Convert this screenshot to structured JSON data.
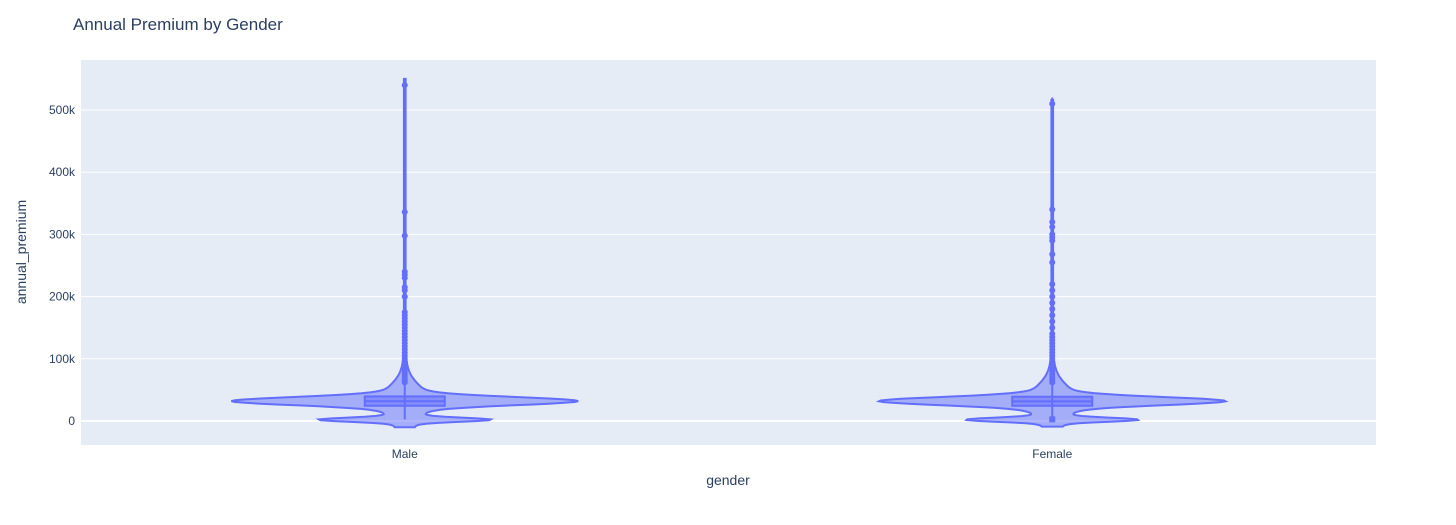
{
  "chart_data": {
    "type": "violin",
    "title": "Annual Premium by Gender",
    "xlabel": "gender",
    "ylabel": "annual_premium",
    "ylim": [
      -40000,
      580000
    ],
    "yticks": [
      0,
      100000,
      200000,
      300000,
      400000,
      500000
    ],
    "ytick_labels": [
      "0",
      "100k",
      "200k",
      "300k",
      "400k",
      "500k"
    ],
    "grid": true,
    "colors": {
      "plot_bg": "#e5ecf6",
      "grid": "#ffffff",
      "line": "#636efa",
      "fill": "#636efa",
      "text": "#2a3f5f"
    },
    "categories": [
      "Male",
      "Female"
    ],
    "series": [
      {
        "category": "Male",
        "box": {
          "min": 2630,
          "q1": 24500,
          "median": 31700,
          "q3": 39500,
          "upper_fence": 61500
        },
        "kde_range": [
          -10000,
          550000
        ],
        "outliers": [
          62000,
          65000,
          68000,
          72000,
          76000,
          80000,
          85000,
          90000,
          95000,
          100000,
          105000,
          110000,
          115000,
          120000,
          125000,
          130000,
          135000,
          140000,
          145000,
          150000,
          155000,
          160000,
          165000,
          170000,
          175000,
          200000,
          210000,
          215000,
          230000,
          235000,
          240000,
          298000,
          336000,
          540000
        ]
      },
      {
        "category": "Female",
        "box": {
          "min": 2630,
          "q1": 24500,
          "median": 31500,
          "q3": 39000,
          "upper_fence": 61000
        },
        "kde_range": [
          -9000,
          516000
        ],
        "outliers": [
          2630,
          62000,
          66000,
          70000,
          75000,
          80000,
          85000,
          90000,
          95000,
          100000,
          105000,
          110000,
          115000,
          120000,
          125000,
          130000,
          135000,
          140000,
          150000,
          160000,
          170000,
          180000,
          190000,
          200000,
          210000,
          220000,
          255000,
          268000,
          290000,
          295000,
          300000,
          312000,
          320000,
          340000,
          510000
        ]
      }
    ]
  }
}
